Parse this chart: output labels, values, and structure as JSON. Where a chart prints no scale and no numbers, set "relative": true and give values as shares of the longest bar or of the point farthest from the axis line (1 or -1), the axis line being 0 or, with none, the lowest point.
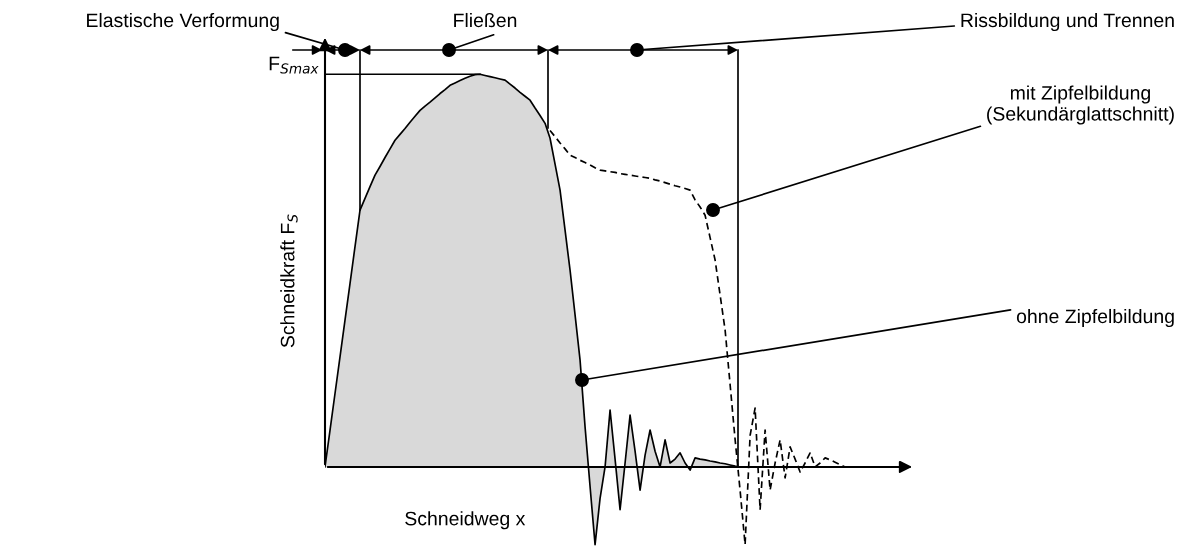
{
  "chart_data": {
    "type": "area",
    "relative": true,
    "xlabel": "Schneidweg x",
    "ylabel": "Schneidkraft F$_{S}$",
    "categories": [
      null,
      null,
      null,
      null,
      null,
      null,
      null,
      null,
      null,
      null,
      null,
      null,
      null,
      null,
      null,
      null,
      null,
      null,
      null,
      null,
      null,
      null,
      null,
      null,
      null,
      null,
      null,
      null,
      null,
      null,
      null,
      null,
      null,
      null,
      null,
      null,
      null,
      null,
      null,
      null,
      null,
      null,
      null,
      null,
      null,
      null,
      null,
      null,
      null,
      null,
      null,
      null,
      null,
      null,
      null,
      null,
      null,
      null,
      null,
      null,
      null,
      null,
      null,
      null,
      null,
      null,
      null,
      null,
      null,
      null,
      null,
      null,
      null,
      null,
      null,
      null,
      null,
      null,
      null,
      null,
      null,
      null,
      null,
      null,
      null,
      null,
      null,
      null,
      null,
      null,
      null,
      null,
      null,
      null,
      null,
      null,
      null,
      null,
      null,
      null,
      null,
      null,
      null,
      null,
      null,
      null,
      null,
      null,
      null,
      null,
      null,
      null,
      null,
      null
    ],
    "series": [
      {
        "color": "#d9d9d9",
        "line_style": "solid",
        "values": [
          0,
          0.093,
          0.187,
          0.28,
          0.374,
          0.467,
          0.561,
          0.654,
          0.684,
          0.714,
          0.743,
          0.765,
          0.788,
          0.81,
          0.832,
          0.847,
          0.862,
          0.878,
          0.893,
          0.908,
          0.919,
          0.929,
          0.94,
          0.951,
          0.961,
          0.972,
          0.978,
          0.984,
          0.99,
          0.995,
          0.999,
          1,
          0.997,
          0.994,
          0.991,
          0.988,
          0.985,
          0.975,
          0.965,
          0.954,
          0.944,
          0.934,
          0.914,
          0.895,
          0.875,
          0.837,
          0.771,
          0.705,
          0.603,
          0.501,
          0.387,
          0.272,
          0.102,
          -0.05,
          -0.198,
          -0.08,
          0,
          0.145,
          0.02,
          -0.109,
          0.01,
          0.132,
          0.04,
          -0.059,
          0.03,
          0.094,
          0.04,
          0,
          0.069,
          0.01,
          0.02,
          0.036,
          0.01,
          -0.008,
          0.023,
          0.02,
          0.018,
          0.015,
          0.013,
          0.01,
          0.008,
          0.005,
          0.002,
          0,
          null,
          null,
          null,
          null,
          null,
          null,
          null,
          null,
          null,
          null,
          null,
          null,
          null,
          null,
          null,
          null,
          null,
          null,
          null,
          null,
          null,
          null,
          null,
          null,
          null,
          null,
          null,
          null,
          null,
          null
        ]
      },
      {
        "type": "line",
        "color": "#000000",
        "line_style": "dashed",
        "values": [
          null,
          null,
          null,
          null,
          null,
          null,
          null,
          null,
          null,
          null,
          null,
          null,
          null,
          null,
          null,
          null,
          null,
          null,
          null,
          null,
          null,
          null,
          null,
          null,
          null,
          null,
          null,
          null,
          null,
          null,
          null,
          null,
          null,
          null,
          null,
          null,
          null,
          null,
          null,
          null,
          null,
          null,
          null,
          null,
          null,
          0.857,
          0.841,
          0.825,
          0.81,
          0.794,
          0.788,
          0.781,
          0.775,
          0.769,
          0.762,
          0.756,
          0.754,
          0.752,
          0.75,
          0.747,
          0.745,
          0.743,
          0.741,
          0.739,
          0.737,
          0.735,
          0.731,
          0.728,
          0.724,
          0.72,
          0.716,
          0.713,
          0.709,
          0.705,
          0.68,
          0.662,
          0.641,
          0.584,
          0.527,
          0.438,
          0.349,
          0.21,
          0.07,
          -0.06,
          -0.198,
          0.08,
          0.15,
          -0.109,
          0.094,
          -0.059,
          0.01,
          0.069,
          -0.028,
          0.051,
          0.02,
          -0.013,
          0.01,
          0.036,
          0,
          0.01,
          0.023,
          0.018,
          0.012,
          0.006,
          0,
          0,
          0,
          0,
          0,
          0,
          0,
          0,
          0,
          0
        ]
      }
    ],
    "ref_lines": [
      {
        "axis": "y",
        "value": 1,
        "label": "F$_{Smax}$"
      }
    ],
    "annotations": [
      "Elastische Verformung",
      "Fließen",
      "Rissbildung und Trennen",
      "mit Zipfelbildung\n(Sekundärglattschnitt)",
      "ohne Zipfelbildung"
    ],
    "grid": false,
    "legend": false
  }
}
